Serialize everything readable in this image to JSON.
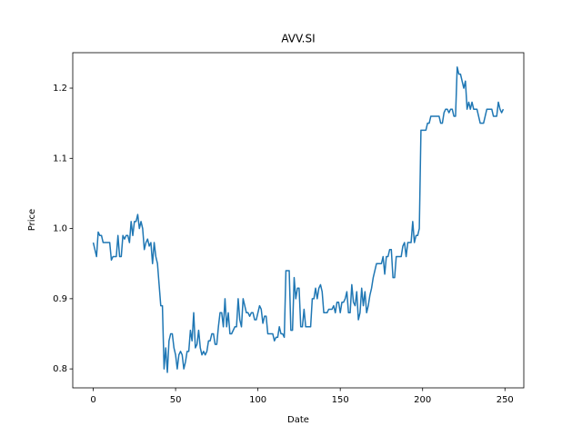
{
  "chart_data": {
    "type": "line",
    "title": "AVV.SI",
    "x_label": "Date",
    "y_label": "Price",
    "color": "#1f77b4",
    "x": [
      0,
      1,
      2,
      3,
      4,
      5,
      6,
      7,
      8,
      9,
      10,
      11,
      12,
      13,
      14,
      15,
      16,
      17,
      18,
      19,
      20,
      21,
      22,
      23,
      24,
      25,
      26,
      27,
      28,
      29,
      30,
      31,
      32,
      33,
      34,
      35,
      36,
      37,
      38,
      39,
      40,
      41,
      42,
      43,
      44,
      45,
      46,
      47,
      48,
      49,
      50,
      51,
      52,
      53,
      54,
      55,
      56,
      57,
      58,
      59,
      60,
      61,
      62,
      63,
      64,
      65,
      66,
      67,
      68,
      69,
      70,
      71,
      72,
      73,
      74,
      75,
      76,
      77,
      78,
      79,
      80,
      81,
      82,
      83,
      84,
      85,
      86,
      87,
      88,
      89,
      90,
      91,
      92,
      93,
      94,
      95,
      96,
      97,
      98,
      99,
      100,
      101,
      102,
      103,
      104,
      105,
      106,
      107,
      108,
      109,
      110,
      111,
      112,
      113,
      114,
      115,
      116,
      117,
      118,
      119,
      120,
      121,
      122,
      123,
      124,
      125,
      126,
      127,
      128,
      129,
      130,
      131,
      132,
      133,
      134,
      135,
      136,
      137,
      138,
      139,
      140,
      141,
      142,
      143,
      144,
      145,
      146,
      147,
      148,
      149,
      150,
      151,
      152,
      153,
      154,
      155,
      156,
      157,
      158,
      159,
      160,
      161,
      162,
      163,
      164,
      165,
      166,
      167,
      168,
      169,
      170,
      171,
      172,
      173,
      174,
      175,
      176,
      177,
      178,
      179,
      180,
      181,
      182,
      183,
      184,
      185,
      186,
      187,
      188,
      189,
      190,
      191,
      192,
      193,
      194,
      195,
      196,
      197,
      198,
      199,
      200,
      201,
      202,
      203,
      204,
      205,
      206,
      207,
      208,
      209,
      210,
      211,
      212,
      213,
      214,
      215,
      216,
      217,
      218,
      219,
      220,
      221,
      222,
      223,
      224,
      225,
      226,
      227,
      228,
      229,
      230,
      231,
      232,
      233,
      234,
      235,
      236,
      237,
      238,
      239,
      240,
      241,
      242,
      243,
      244,
      245,
      246,
      247,
      248,
      249
    ],
    "values": [
      0.98,
      0.97,
      0.96,
      0.995,
      0.99,
      0.99,
      0.98,
      0.98,
      0.98,
      0.98,
      0.98,
      0.955,
      0.96,
      0.96,
      0.96,
      0.99,
      0.96,
      0.96,
      0.99,
      0.985,
      0.99,
      0.99,
      0.98,
      1.01,
      0.99,
      1.01,
      1.01,
      1.02,
      1.0,
      1.01,
      1.0,
      0.97,
      0.98,
      0.985,
      0.975,
      0.98,
      0.95,
      0.98,
      0.96,
      0.95,
      0.92,
      0.89,
      0.89,
      0.8,
      0.83,
      0.795,
      0.84,
      0.85,
      0.85,
      0.83,
      0.82,
      0.8,
      0.82,
      0.825,
      0.82,
      0.8,
      0.81,
      0.825,
      0.825,
      0.855,
      0.84,
      0.88,
      0.83,
      0.835,
      0.855,
      0.83,
      0.82,
      0.825,
      0.82,
      0.825,
      0.84,
      0.84,
      0.85,
      0.85,
      0.835,
      0.835,
      0.86,
      0.88,
      0.88,
      0.86,
      0.9,
      0.86,
      0.88,
      0.85,
      0.85,
      0.855,
      0.86,
      0.86,
      0.9,
      0.87,
      0.86,
      0.9,
      0.89,
      0.88,
      0.88,
      0.875,
      0.88,
      0.88,
      0.87,
      0.87,
      0.88,
      0.89,
      0.885,
      0.865,
      0.875,
      0.875,
      0.85,
      0.85,
      0.85,
      0.85,
      0.84,
      0.845,
      0.845,
      0.86,
      0.85,
      0.85,
      0.845,
      0.94,
      0.94,
      0.94,
      0.855,
      0.855,
      0.93,
      0.9,
      0.915,
      0.915,
      0.86,
      0.86,
      0.885,
      0.86,
      0.86,
      0.86,
      0.86,
      0.9,
      0.9,
      0.915,
      0.9,
      0.915,
      0.92,
      0.91,
      0.88,
      0.88,
      0.88,
      0.885,
      0.885,
      0.885,
      0.89,
      0.88,
      0.895,
      0.895,
      0.88,
      0.895,
      0.895,
      0.9,
      0.91,
      0.88,
      0.88,
      0.92,
      0.895,
      0.89,
      0.91,
      0.87,
      0.88,
      0.915,
      0.89,
      0.91,
      0.88,
      0.89,
      0.905,
      0.915,
      0.93,
      0.94,
      0.95,
      0.95,
      0.95,
      0.95,
      0.96,
      0.935,
      0.96,
      0.96,
      0.97,
      0.97,
      0.93,
      0.93,
      0.96,
      0.96,
      0.96,
      0.96,
      0.975,
      0.98,
      0.96,
      0.98,
      0.98,
      0.98,
      1.01,
      0.98,
      0.99,
      0.99,
      1.0,
      1.14,
      1.14,
      1.14,
      1.14,
      1.15,
      1.15,
      1.16,
      1.16,
      1.16,
      1.16,
      1.16,
      1.16,
      1.15,
      1.15,
      1.165,
      1.17,
      1.17,
      1.165,
      1.17,
      1.17,
      1.16,
      1.16,
      1.23,
      1.22,
      1.22,
      1.21,
      1.2,
      1.21,
      1.17,
      1.18,
      1.17,
      1.18,
      1.17,
      1.17,
      1.17,
      1.16,
      1.15,
      1.15,
      1.15,
      1.16,
      1.17,
      1.17,
      1.17,
      1.17,
      1.16,
      1.16,
      1.16,
      1.18,
      1.17,
      1.165,
      1.17
    ],
    "xlim": [
      -12.45,
      261.45
    ],
    "ylim": [
      0.773,
      1.2505
    ],
    "xticks": [
      0,
      50,
      100,
      150,
      200,
      250
    ],
    "yticks": [
      0.8,
      0.9,
      {
        "value": 1.0,
        "label": "1.0"
      },
      1.1,
      1.2
    ]
  }
}
